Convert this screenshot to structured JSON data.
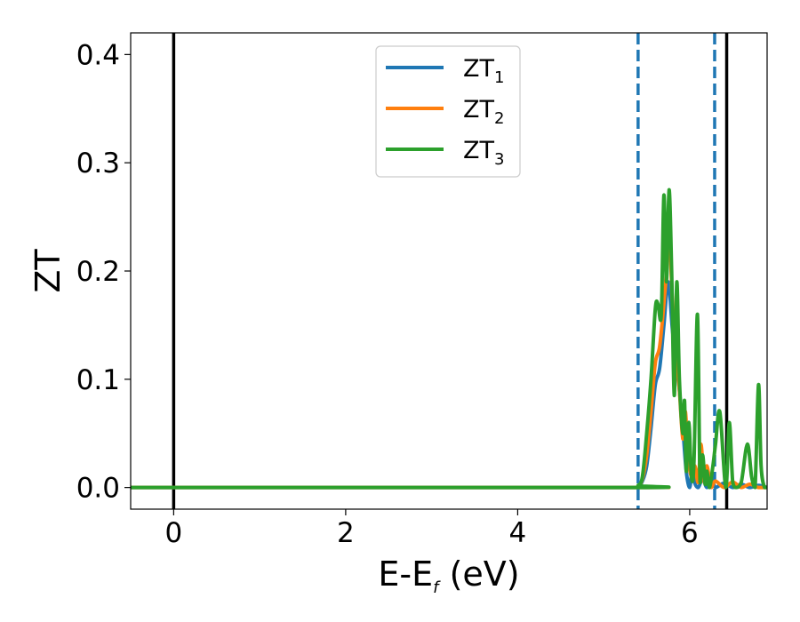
{
  "chart_data": {
    "type": "line",
    "xlabel": "E-E",
    "xlabel_sub": "f",
    "xlabel_unit": " (eV)",
    "ylabel": "ZT",
    "xlim": [
      -0.5,
      6.9
    ],
    "ylim": [
      -0.02,
      0.42
    ],
    "x_ticks": [
      0,
      2,
      4,
      6
    ],
    "y_ticks": [
      0.0,
      0.1,
      0.2,
      0.3,
      0.4
    ],
    "x_tick_labels": [
      "0",
      "2",
      "4",
      "6"
    ],
    "y_tick_labels": [
      "0.0",
      "0.1",
      "0.2",
      "0.3",
      "0.4"
    ],
    "legend_position": "upper-center",
    "grid": false,
    "vertical_lines": [
      {
        "x": 0.0,
        "style": "solid",
        "color": "#000000"
      },
      {
        "x": 6.43,
        "style": "solid",
        "color": "#000000"
      },
      {
        "x": 5.4,
        "style": "dashed",
        "color": "#1f77b4"
      },
      {
        "x": 6.29,
        "style": "dashed",
        "color": "#1f77b4"
      }
    ],
    "series": [
      {
        "name": "ZT",
        "sub": "1",
        "color": "#1f77b4",
        "x": [
          -0.5,
          5.3,
          5.4,
          5.45,
          5.5,
          5.55,
          5.6,
          5.65,
          5.7,
          5.75,
          5.8,
          5.85,
          5.88,
          5.92,
          5.96,
          6.0,
          6.03,
          6.06,
          6.1,
          6.15,
          6.2,
          6.25,
          6.3,
          6.4,
          6.5,
          6.6,
          6.7,
          6.8,
          6.9
        ],
        "y": [
          0.0,
          0.0,
          0.001,
          0.006,
          0.02,
          0.055,
          0.095,
          0.11,
          0.15,
          0.19,
          0.145,
          0.11,
          0.09,
          0.055,
          0.015,
          0.0,
          0.018,
          0.004,
          0.0,
          0.008,
          0.0,
          0.01,
          0.0,
          0.004,
          0.0,
          0.003,
          0.0,
          0.002,
          0.0
        ]
      },
      {
        "name": "ZT",
        "sub": "2",
        "color": "#ff7f0e",
        "x": [
          -0.5,
          5.3,
          5.4,
          5.45,
          5.5,
          5.55,
          5.6,
          5.65,
          5.7,
          5.73,
          5.76,
          5.8,
          5.84,
          5.88,
          5.92,
          5.95,
          5.98,
          6.02,
          6.06,
          6.1,
          6.13,
          6.17,
          6.2,
          6.25,
          6.3,
          6.4,
          6.5,
          6.6,
          6.7,
          6.8,
          6.9
        ],
        "y": [
          0.0,
          0.0,
          0.001,
          0.008,
          0.03,
          0.07,
          0.115,
          0.13,
          0.17,
          0.2,
          0.24,
          0.17,
          0.13,
          0.09,
          0.045,
          0.07,
          0.03,
          0.01,
          0.02,
          0.005,
          0.04,
          0.005,
          0.02,
          0.0,
          0.006,
          0.0,
          0.005,
          0.0,
          0.003,
          0.0,
          0.0
        ]
      },
      {
        "name": "ZT",
        "sub": "3",
        "color": "#2ca02c",
        "x": [
          -0.5,
          5.3,
          5.4,
          5.45,
          5.5,
          5.55,
          5.6,
          5.63,
          5.67,
          5.7,
          5.73,
          5.76,
          5.79,
          5.82,
          5.85,
          5.88,
          5.92,
          5.94,
          5.96,
          5.99,
          6.02,
          6.05,
          6.09,
          6.12,
          6.15,
          6.18,
          6.2,
          6.23,
          6.27,
          6.3,
          6.35,
          6.42,
          6.46,
          6.5,
          6.54,
          6.6,
          6.67,
          6.72,
          6.76,
          6.8,
          6.83,
          6.87,
          6.9
        ],
        "y": [
          0.0,
          0.0,
          0.002,
          0.01,
          0.05,
          0.1,
          0.165,
          0.17,
          0.16,
          0.27,
          0.19,
          0.275,
          0.2,
          0.085,
          0.19,
          0.1,
          0.05,
          0.08,
          0.015,
          0.06,
          0.01,
          0.025,
          0.16,
          0.005,
          0.03,
          0.003,
          0.015,
          0.0,
          0.02,
          0.04,
          0.07,
          0.0,
          0.06,
          0.005,
          0.0,
          0.005,
          0.04,
          0.01,
          0.0,
          0.095,
          0.02,
          0.0,
          0.0
        ]
      }
    ]
  }
}
